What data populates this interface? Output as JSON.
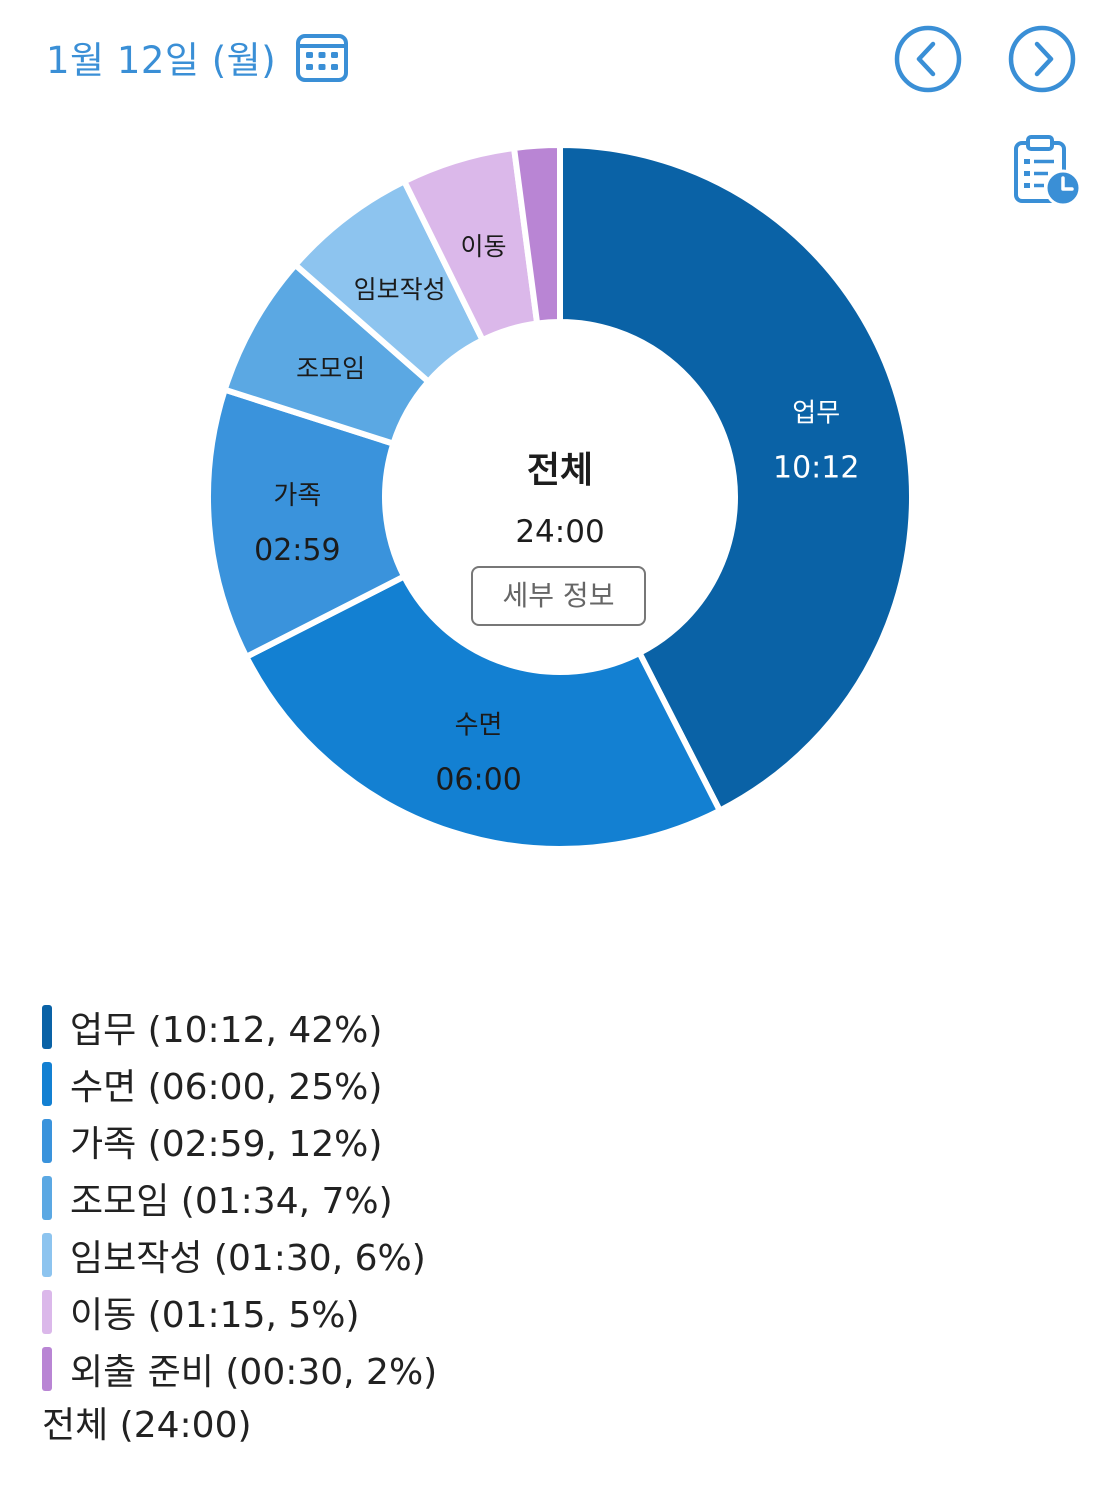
{
  "header": {
    "date_label": "1월 12일 (월)"
  },
  "icons": {
    "calendar": "calendar-icon",
    "prev": "chevron-left-icon",
    "next": "chevron-right-icon",
    "report": "clipboard-clock-icon"
  },
  "colors": {
    "accent": "#3a8fd6"
  },
  "center": {
    "title": "전체",
    "total": "24:00",
    "detail_button": "세부 정보"
  },
  "chart_data": {
    "type": "pie",
    "donut": true,
    "slices": [
      {
        "name": "업무",
        "time": "10:12",
        "percent": "42%",
        "value": 612,
        "color": "#0a62a6",
        "show_label": true,
        "show_time": true
      },
      {
        "name": "수면",
        "time": "06:00",
        "percent": "25%",
        "value": 360,
        "color": "#1380d2",
        "show_label": true,
        "show_time": true
      },
      {
        "name": "가족",
        "time": "02:59",
        "percent": "12%",
        "value": 179,
        "color": "#3a93dc",
        "show_label": true,
        "show_time": true
      },
      {
        "name": "조모임",
        "time": "01:34",
        "percent": "7%",
        "value": 94,
        "color": "#5ba8e3",
        "show_label": true,
        "show_time": false
      },
      {
        "name": "임보작성",
        "time": "01:30",
        "percent": "6%",
        "value": 90,
        "color": "#8dc4ef",
        "show_label": true,
        "show_time": false
      },
      {
        "name": "이동",
        "time": "01:15",
        "percent": "5%",
        "value": 75,
        "color": "#dbb8ea",
        "show_label": true,
        "show_time": false
      },
      {
        "name": "외출 준비",
        "time": "00:30",
        "percent": "2%",
        "value": 30,
        "color": "#b985d4",
        "show_label": false,
        "show_time": false
      }
    ]
  },
  "legend": {
    "items": [
      {
        "label": "업무 (10:12, 42%)",
        "color": "#0a62a6"
      },
      {
        "label": "수면 (06:00, 25%)",
        "color": "#1380d2"
      },
      {
        "label": "가족 (02:59, 12%)",
        "color": "#3a93dc"
      },
      {
        "label": "조모임 (01:34, 7%)",
        "color": "#5ba8e3"
      },
      {
        "label": "임보작성 (01:30, 6%)",
        "color": "#8dc4ef"
      },
      {
        "label": "이동 (01:15, 5%)",
        "color": "#dbb8ea"
      },
      {
        "label": "외출 준비 (00:30, 2%)",
        "color": "#b985d4"
      }
    ],
    "total": "전체 (24:00)"
  }
}
